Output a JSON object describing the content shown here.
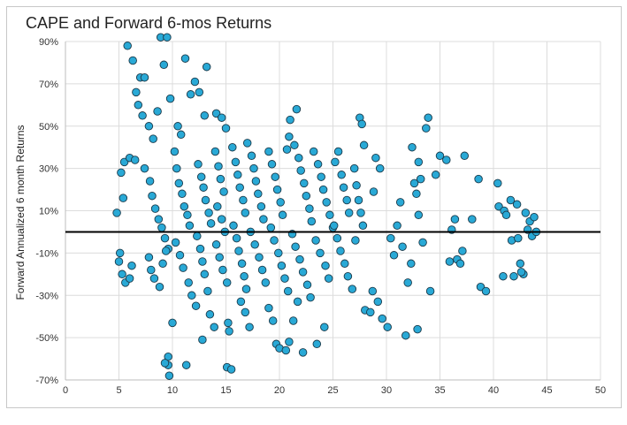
{
  "chart_data": {
    "type": "scatter",
    "title": "CAPE and Forward 6-mos Returns",
    "xlabel": "",
    "ylabel": "Forward Annualized 6 month Returns",
    "xlim": [
      0,
      50
    ],
    "ylim": [
      -70,
      90
    ],
    "x_ticks": [
      "0",
      "5",
      "10",
      "15",
      "20",
      "25",
      "30",
      "35",
      "40",
      "45",
      "50"
    ],
    "y_ticks": [
      "90%",
      "70%",
      "50%",
      "30%",
      "10%",
      "-10%",
      "-30%",
      "-50%",
      "-70%"
    ],
    "grid": true,
    "reference_line_y": 0,
    "marker_color": "#29a9d6",
    "marker_edge_color": "#1b3a4a",
    "line_color": "#000000",
    "series": [
      {
        "points": [
          [
            5.2,
            28
          ],
          [
            5.5,
            33
          ],
          [
            6.0,
            35
          ],
          [
            6.5,
            34
          ],
          [
            5.0,
            -14
          ],
          [
            5.3,
            -20
          ],
          [
            5.6,
            -24
          ],
          [
            5.1,
            -10
          ],
          [
            4.8,
            9
          ],
          [
            5.4,
            16
          ],
          [
            6.2,
            -16
          ],
          [
            6.0,
            -22
          ],
          [
            5.8,
            88
          ],
          [
            6.3,
            81
          ],
          [
            6.6,
            66
          ],
          [
            6.8,
            60
          ],
          [
            7.0,
            73
          ],
          [
            7.4,
            73
          ],
          [
            7.2,
            55
          ],
          [
            7.8,
            50
          ],
          [
            8.2,
            44
          ],
          [
            8.6,
            57
          ],
          [
            8.9,
            92
          ],
          [
            9.2,
            79
          ],
          [
            9.5,
            92
          ],
          [
            9.8,
            63
          ],
          [
            10.5,
            50
          ],
          [
            10.8,
            46
          ],
          [
            11.2,
            82
          ],
          [
            11.7,
            65
          ],
          [
            12.1,
            71
          ],
          [
            12.5,
            66
          ],
          [
            13.2,
            78
          ],
          [
            13.0,
            55
          ],
          [
            14.1,
            56
          ],
          [
            14.6,
            54
          ],
          [
            15.0,
            49
          ],
          [
            7.4,
            30
          ],
          [
            7.9,
            24
          ],
          [
            8.1,
            17
          ],
          [
            8.4,
            11
          ],
          [
            8.7,
            6
          ],
          [
            9.0,
            2
          ],
          [
            9.3,
            -3
          ],
          [
            9.6,
            -8
          ],
          [
            7.8,
            -12
          ],
          [
            8.0,
            -18
          ],
          [
            8.3,
            -22
          ],
          [
            8.8,
            -26
          ],
          [
            9.1,
            -15
          ],
          [
            9.4,
            -9
          ],
          [
            9.6,
            -59
          ],
          [
            9.6,
            -63
          ],
          [
            9.7,
            -68
          ],
          [
            9.3,
            -62
          ],
          [
            10.0,
            -43
          ],
          [
            11.3,
            -63
          ],
          [
            10.2,
            38
          ],
          [
            10.4,
            30
          ],
          [
            10.6,
            23
          ],
          [
            10.9,
            18
          ],
          [
            11.1,
            12
          ],
          [
            11.4,
            8
          ],
          [
            11.6,
            3
          ],
          [
            10.3,
            -5
          ],
          [
            10.7,
            -11
          ],
          [
            11.0,
            -17
          ],
          [
            11.5,
            -24
          ],
          [
            11.8,
            -30
          ],
          [
            12.2,
            -35
          ],
          [
            12.4,
            32
          ],
          [
            12.7,
            26
          ],
          [
            12.9,
            21
          ],
          [
            13.1,
            15
          ],
          [
            13.4,
            9
          ],
          [
            13.6,
            4
          ],
          [
            12.3,
            -2
          ],
          [
            12.6,
            -8
          ],
          [
            12.8,
            -14
          ],
          [
            13.0,
            -20
          ],
          [
            13.3,
            -28
          ],
          [
            13.5,
            -39
          ],
          [
            12.8,
            -51
          ],
          [
            13.9,
            -45
          ],
          [
            14.0,
            38
          ],
          [
            14.3,
            31
          ],
          [
            14.5,
            25
          ],
          [
            14.8,
            19
          ],
          [
            14.2,
            12
          ],
          [
            14.6,
            6
          ],
          [
            14.9,
            0
          ],
          [
            14.1,
            -6
          ],
          [
            14.4,
            -12
          ],
          [
            14.7,
            -18
          ],
          [
            15.1,
            -24
          ],
          [
            15.2,
            -43
          ],
          [
            15.3,
            -47
          ],
          [
            15.1,
            -64
          ],
          [
            15.5,
            -65
          ],
          [
            15.6,
            40
          ],
          [
            15.9,
            33
          ],
          [
            16.1,
            27
          ],
          [
            16.3,
            21
          ],
          [
            16.6,
            15
          ],
          [
            16.8,
            9
          ],
          [
            15.7,
            3
          ],
          [
            16.0,
            -3
          ],
          [
            16.2,
            -9
          ],
          [
            16.5,
            -15
          ],
          [
            16.7,
            -21
          ],
          [
            16.9,
            -27
          ],
          [
            16.4,
            -33
          ],
          [
            16.8,
            -38
          ],
          [
            17.2,
            -45
          ],
          [
            17.0,
            42
          ],
          [
            17.4,
            36
          ],
          [
            17.6,
            30
          ],
          [
            17.8,
            24
          ],
          [
            18.0,
            18
          ],
          [
            18.3,
            12
          ],
          [
            18.5,
            6
          ],
          [
            17.3,
            0
          ],
          [
            17.7,
            -6
          ],
          [
            18.1,
            -12
          ],
          [
            18.4,
            -18
          ],
          [
            18.7,
            -24
          ],
          [
            19.0,
            -36
          ],
          [
            19.4,
            -42
          ],
          [
            19.0,
            38
          ],
          [
            19.3,
            32
          ],
          [
            19.6,
            26
          ],
          [
            19.8,
            20
          ],
          [
            20.1,
            14
          ],
          [
            20.3,
            8
          ],
          [
            19.2,
            2
          ],
          [
            19.5,
            -4
          ],
          [
            19.9,
            -10
          ],
          [
            20.2,
            -16
          ],
          [
            20.5,
            -22
          ],
          [
            20.8,
            -28
          ],
          [
            19.7,
            -53
          ],
          [
            20.0,
            -55
          ],
          [
            20.6,
            -56
          ],
          [
            20.9,
            -52
          ],
          [
            21.3,
            -42
          ],
          [
            21.7,
            -33
          ],
          [
            20.7,
            39
          ],
          [
            20.9,
            45
          ],
          [
            21.0,
            53
          ],
          [
            21.6,
            58
          ],
          [
            21.4,
            41
          ],
          [
            21.8,
            35
          ],
          [
            22.0,
            29
          ],
          [
            22.3,
            23
          ],
          [
            22.5,
            17
          ],
          [
            22.8,
            11
          ],
          [
            23.0,
            5
          ],
          [
            21.2,
            -1
          ],
          [
            21.5,
            -7
          ],
          [
            21.9,
            -13
          ],
          [
            22.2,
            -19
          ],
          [
            22.6,
            -25
          ],
          [
            22.9,
            -31
          ],
          [
            22.2,
            -57
          ],
          [
            23.5,
            -53
          ],
          [
            24.2,
            -45
          ],
          [
            23.2,
            38
          ],
          [
            23.6,
            32
          ],
          [
            23.9,
            26
          ],
          [
            24.1,
            20
          ],
          [
            24.4,
            14
          ],
          [
            24.7,
            8
          ],
          [
            25.0,
            2
          ],
          [
            23.4,
            -4
          ],
          [
            23.8,
            -10
          ],
          [
            24.3,
            -16
          ],
          [
            24.6,
            -22
          ],
          [
            25.2,
            33
          ],
          [
            25.5,
            38
          ],
          [
            25.8,
            27
          ],
          [
            26.0,
            21
          ],
          [
            26.3,
            15
          ],
          [
            26.5,
            9
          ],
          [
            25.1,
            3
          ],
          [
            25.4,
            -3
          ],
          [
            25.7,
            -9
          ],
          [
            26.1,
            -15
          ],
          [
            26.4,
            -21
          ],
          [
            26.8,
            -27
          ],
          [
            27.0,
            30
          ],
          [
            27.2,
            22
          ],
          [
            27.4,
            15
          ],
          [
            27.6,
            9
          ],
          [
            27.8,
            3
          ],
          [
            27.1,
            -4
          ],
          [
            27.5,
            54
          ],
          [
            27.7,
            51
          ],
          [
            27.9,
            41
          ],
          [
            28.0,
            -37
          ],
          [
            28.5,
            -38
          ],
          [
            28.7,
            -28
          ],
          [
            29.0,
            35
          ],
          [
            29.4,
            30
          ],
          [
            28.8,
            19
          ],
          [
            29.2,
            -33
          ],
          [
            29.6,
            -41
          ],
          [
            30.1,
            -45
          ],
          [
            30.4,
            -3
          ],
          [
            30.7,
            -11
          ],
          [
            31.0,
            3
          ],
          [
            31.3,
            14
          ],
          [
            31.5,
            -7
          ],
          [
            31.8,
            -49
          ],
          [
            32.0,
            -24
          ],
          [
            32.3,
            -15
          ],
          [
            32.4,
            40
          ],
          [
            32.6,
            23
          ],
          [
            32.8,
            18
          ],
          [
            33.0,
            33
          ],
          [
            33.2,
            25
          ],
          [
            33.0,
            8
          ],
          [
            33.4,
            -5
          ],
          [
            32.9,
            -46
          ],
          [
            33.7,
            49
          ],
          [
            33.9,
            54
          ],
          [
            34.1,
            -28
          ],
          [
            34.6,
            27
          ],
          [
            35.0,
            36
          ],
          [
            35.6,
            34
          ],
          [
            35.9,
            -14
          ],
          [
            36.1,
            1
          ],
          [
            36.4,
            6
          ],
          [
            36.6,
            -13
          ],
          [
            36.9,
            -15
          ],
          [
            37.1,
            -9
          ],
          [
            37.3,
            36
          ],
          [
            38.0,
            6
          ],
          [
            38.6,
            25
          ],
          [
            38.8,
            -26
          ],
          [
            39.3,
            -28
          ],
          [
            40.4,
            23
          ],
          [
            40.5,
            12
          ],
          [
            41.0,
            10
          ],
          [
            41.2,
            8
          ],
          [
            41.6,
            15
          ],
          [
            41.7,
            -4
          ],
          [
            41.9,
            -21
          ],
          [
            42.2,
            13
          ],
          [
            42.3,
            -3
          ],
          [
            42.5,
            -15
          ],
          [
            42.8,
            -20
          ],
          [
            43.0,
            9
          ],
          [
            43.2,
            1
          ],
          [
            43.4,
            5
          ],
          [
            43.6,
            -2
          ],
          [
            43.8,
            7
          ],
          [
            44.0,
            0
          ],
          [
            42.6,
            -19
          ],
          [
            40.9,
            -21
          ]
        ]
      }
    ]
  }
}
